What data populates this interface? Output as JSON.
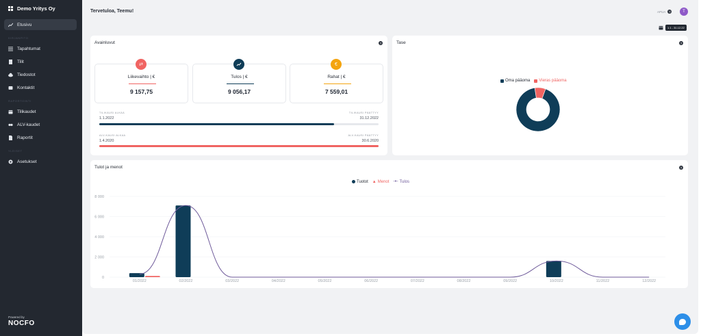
{
  "sidebar": {
    "company": "Demo Yritys Oy",
    "items": [
      {
        "label": "Etusivu",
        "icon": "chart-icon",
        "active": true
      },
      {
        "section": "KIRJANPITO"
      },
      {
        "label": "Tapahtumat",
        "icon": "list-icon"
      },
      {
        "label": "Tilit",
        "icon": "document-icon"
      },
      {
        "label": "Tiedostot",
        "icon": "cloud-icon"
      },
      {
        "label": "Kontaktit",
        "icon": "contacts-icon"
      },
      {
        "section": "RAPORTOINTI"
      },
      {
        "label": "Tilikaudet",
        "icon": "calendar-icon"
      },
      {
        "label": "ALV-kaudet",
        "icon": "tax-icon"
      },
      {
        "label": "Raportit",
        "icon": "report-icon"
      },
      {
        "section": "YLEISET"
      },
      {
        "label": "Asetukset",
        "icon": "gear-icon"
      }
    ],
    "powered_by": "Powered by",
    "logo": "NOCFO"
  },
  "header": {
    "welcome": "Tervetuloa, Teemu!",
    "help": "APUA",
    "avatar": "T",
    "date_range": "1.1 - 31.12.22"
  },
  "avainluvut": {
    "title": "Avainluvut",
    "kpis": [
      {
        "label": "Liikevaihto | €",
        "value": "9 157,75",
        "color": "#f06462",
        "icon": "exchange-icon"
      },
      {
        "label": "Tulos | €",
        "value": "9 056,17",
        "color": "#0f3d58",
        "icon": "trend-icon"
      },
      {
        "label": "Rahat | €",
        "value": "7 559,01",
        "color": "#f4a40f",
        "icon": "euro-icon"
      }
    ],
    "tilikausi": {
      "start_label": "TILIKAUSI ALKAA",
      "start": "1.1.2022",
      "end_label": "TILIKAUSI PÄÄTTYY",
      "end": "31.12.2022",
      "progress": 0.84
    },
    "alvkausi": {
      "start_label": "ALV-KAUSI ALKAA",
      "start": "1.4.2020",
      "end_label": "ALV-KAUSI PÄÄTTYY",
      "end": "30.6.2020",
      "progress": 1.0
    }
  },
  "tase": {
    "title": "Tase",
    "chart_data": {
      "type": "pie",
      "legend": [
        "Oma pääoma",
        "Vieras pääoma"
      ],
      "values": [
        92,
        8
      ],
      "colors": [
        "#0f3d58",
        "#f06462"
      ]
    }
  },
  "tulot": {
    "title": "Tulot ja menot",
    "chart_data": {
      "type": "bar",
      "categories": [
        "01/2022",
        "02/2022",
        "03/2022",
        "04/2022",
        "05/2022",
        "06/2022",
        "07/2022",
        "08/2022",
        "09/2022",
        "10/2022",
        "11/2022",
        "12/2022"
      ],
      "series": [
        {
          "name": "Tuotot",
          "values": [
            400,
            7100,
            0,
            0,
            0,
            0,
            0,
            0,
            0,
            1600,
            0,
            0
          ],
          "color": "#0f3d58"
        },
        {
          "name": "Menot",
          "values": [
            120,
            0,
            0,
            0,
            0,
            0,
            0,
            0,
            0,
            0,
            0,
            0
          ],
          "color": "#f06462"
        },
        {
          "name": "Tulos",
          "values": [
            300,
            7100,
            0,
            0,
            0,
            0,
            0,
            0,
            0,
            1600,
            0,
            0
          ],
          "color": "#6e5a9a"
        }
      ],
      "yticks": [
        "0",
        "2 000",
        "4 000",
        "6 000",
        "8 000"
      ],
      "ylim": [
        0,
        8000
      ]
    }
  }
}
